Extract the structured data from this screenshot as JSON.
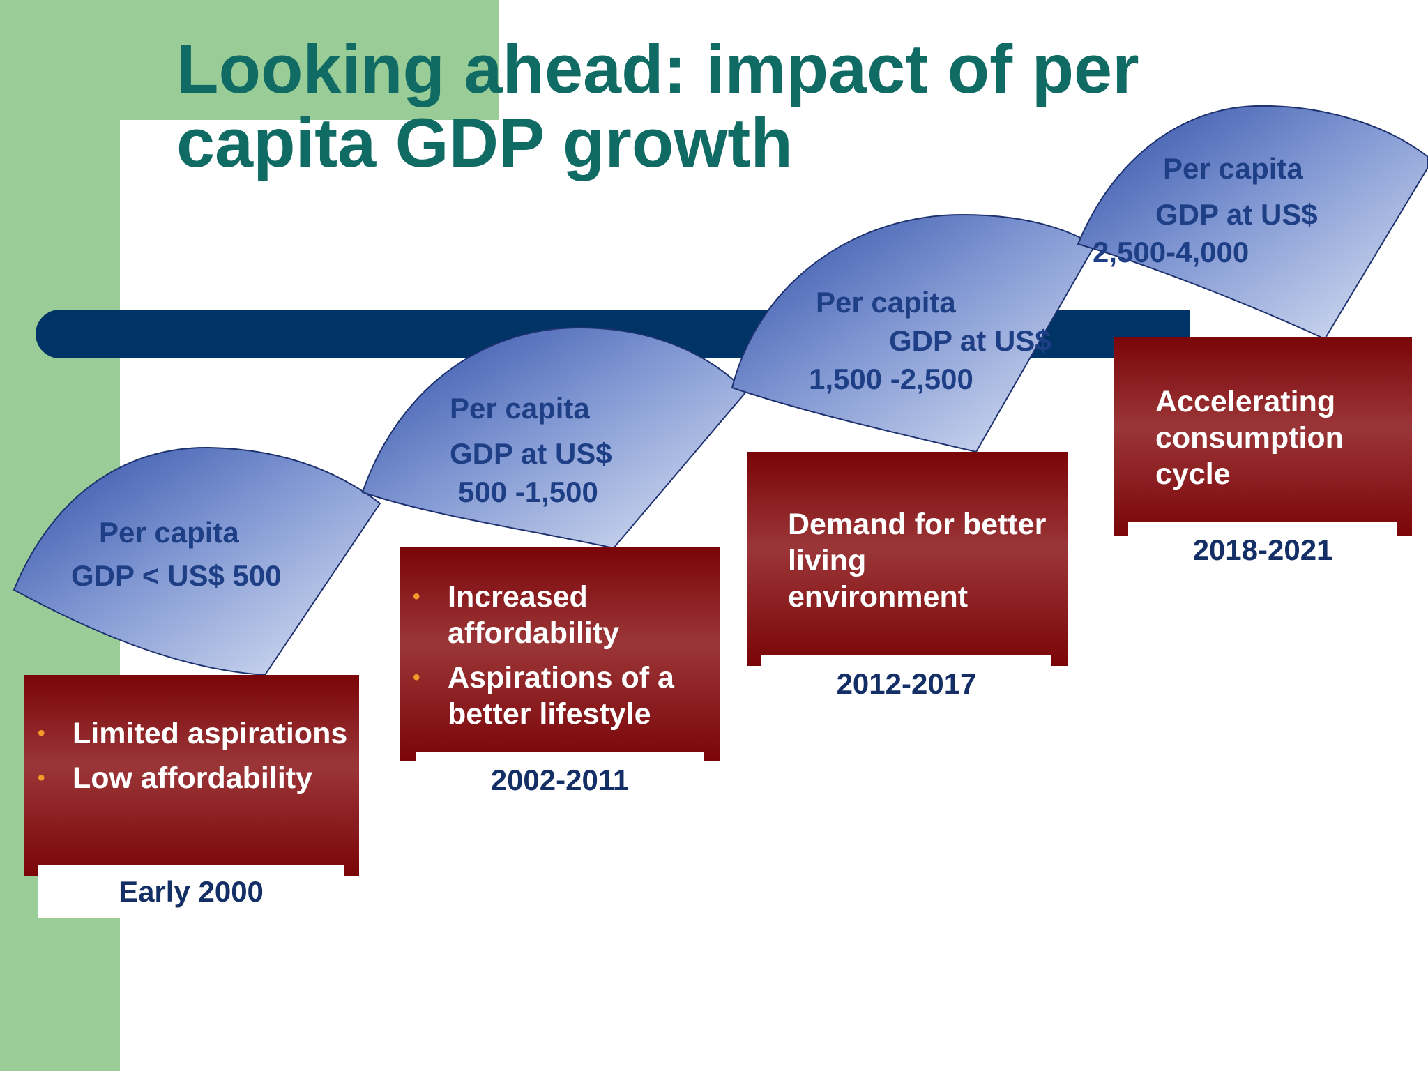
{
  "title": {
    "line1": "Looking ahead: impact of per",
    "line2": "capita GDP growth"
  },
  "colors": {
    "title": "#0f6b64",
    "green_band": "#99cc96",
    "navy_bar": "#003366",
    "fan_dark": "#3452a8",
    "fan_light": "#c7d1ec",
    "box_dark": "#7a0b0f",
    "box_mid": "#9a3336",
    "bullet": "#f39a2b",
    "period_text": "#142e66"
  },
  "stages": [
    {
      "fan_line1": "Per capita",
      "fan_line2": "GDP < US$ 500",
      "fan_line3": "",
      "bullets": [
        "Limited aspirations",
        "Low affordability"
      ],
      "text": "",
      "period": "Early 2000"
    },
    {
      "fan_line1": "Per capita",
      "fan_line2": "GDP at  US$",
      "fan_line3": "500 -1,500",
      "bullets": [
        "Increased affordability",
        "Aspirations of a better lifestyle"
      ],
      "text": "",
      "period": "2002-2011"
    },
    {
      "fan_line1": "Per capita",
      "fan_line2": "GDP at US$",
      "fan_line3": "1,500 -2,500",
      "bullets": [],
      "text": "Demand for better living environment",
      "period": "2012-2017"
    },
    {
      "fan_line1": "Per capita",
      "fan_line2": "GDP at US$",
      "fan_line3": "2,500-4,000",
      "bullets": [],
      "text": "Accelerating consumption cycle",
      "period": "2018-2021"
    }
  ]
}
